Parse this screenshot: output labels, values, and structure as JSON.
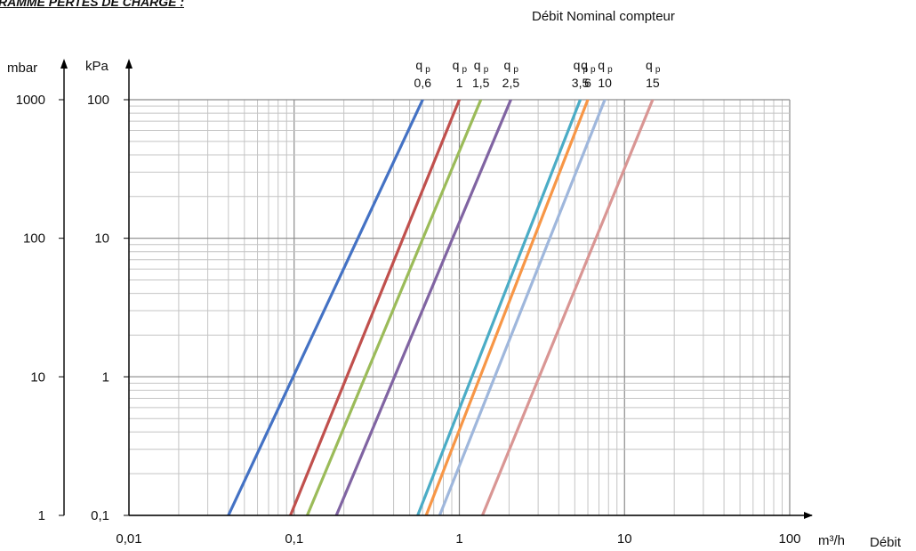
{
  "header": {
    "title": "RAMME PERTES DE CHARGE :",
    "subtitle": "Débit Nominal compteur"
  },
  "chart_data": {
    "type": "line",
    "x_scale": "log",
    "y_scale": "log",
    "xlim": [
      0.01,
      100
    ],
    "ylim": [
      0.1,
      100
    ],
    "x_ticks": [
      "0,01",
      "0,1",
      "1",
      "10",
      "100"
    ],
    "y_ticks_kpa": [
      "0,1",
      "1",
      "10",
      "100"
    ],
    "y_ticks_mbar": [
      "1",
      "10",
      "100",
      "1000"
    ],
    "y_unit_left": "mbar",
    "y_unit_right": "kPa",
    "x_unit": "m³/h",
    "xlabel": "Débit",
    "grid": true,
    "series": [
      {
        "name": "qp 0,6",
        "label_top": "q",
        "label_sub": "p",
        "label_value": "0,6",
        "color": "#4472c4",
        "x": [
          0.04,
          0.6
        ],
        "y": [
          0.1,
          100
        ]
      },
      {
        "name": "qp 1",
        "label_top": "q",
        "label_sub": "p",
        "label_value": "1",
        "color": "#c0504d",
        "x": [
          0.095,
          1.0
        ],
        "y": [
          0.1,
          100
        ]
      },
      {
        "name": "qp 1,5",
        "label_top": "q",
        "label_sub": "p",
        "label_value": "1,5",
        "color": "#9bbb59",
        "x": [
          0.12,
          1.35
        ],
        "y": [
          0.1,
          100
        ]
      },
      {
        "name": "qp 2,5",
        "label_top": "q",
        "label_sub": "p",
        "label_value": "2,5",
        "color": "#8064a2",
        "x": [
          0.18,
          2.05
        ],
        "y": [
          0.1,
          100
        ]
      },
      {
        "name": "qp 3,5",
        "label_top": "q",
        "label_sub": "p",
        "label_value": "3,5",
        "color": "#4bacc6",
        "x": [
          0.56,
          5.4
        ],
        "y": [
          0.1,
          100
        ]
      },
      {
        "name": "qp 6",
        "label_top": "q",
        "label_sub": "p",
        "label_value": "6",
        "color": "#f79646",
        "x": [
          0.63,
          6.0
        ],
        "y": [
          0.1,
          100
        ]
      },
      {
        "name": "qp 10",
        "label_top": "q",
        "label_sub": "p",
        "label_value": "10",
        "color": "#9fb7dc",
        "x": [
          0.76,
          7.6
        ],
        "y": [
          0.1,
          100
        ]
      },
      {
        "name": "qp 15",
        "label_top": "q",
        "label_sub": "p",
        "label_value": "15",
        "color": "#d99694",
        "x": [
          1.38,
          14.8
        ],
        "y": [
          0.1,
          100
        ]
      }
    ]
  }
}
